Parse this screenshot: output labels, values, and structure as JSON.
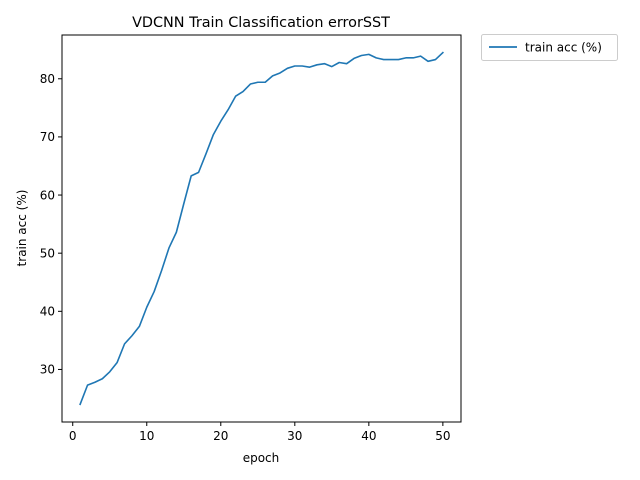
{
  "chart_data": {
    "type": "line",
    "title": "VDCNN Train Classification errorSST",
    "xlabel": "epoch",
    "ylabel": "train acc (%)",
    "xlim": [
      -1.45,
      52.45
    ],
    "ylim": [
      20.96,
      87.53
    ],
    "xticks": [
      0,
      10,
      20,
      30,
      40,
      50
    ],
    "yticks": [
      30,
      40,
      50,
      60,
      70,
      80
    ],
    "grid": false,
    "legend_location": "outside-top-right",
    "series": [
      {
        "name": "train acc (%)",
        "color": "#1f77b4",
        "x": [
          1,
          2,
          3,
          4,
          5,
          6,
          7,
          8,
          9,
          10,
          11,
          12,
          13,
          14,
          15,
          16,
          17,
          18,
          19,
          20,
          21,
          22,
          23,
          24,
          25,
          26,
          27,
          28,
          29,
          30,
          31,
          32,
          33,
          34,
          35,
          36,
          37,
          38,
          39,
          40,
          41,
          42,
          43,
          44,
          45,
          46,
          47,
          48,
          49,
          50
        ],
        "y": [
          24.0,
          27.3,
          27.8,
          28.4,
          29.6,
          31.2,
          34.4,
          35.8,
          37.4,
          40.7,
          43.4,
          47.0,
          50.9,
          53.6,
          58.5,
          63.3,
          63.9,
          67.1,
          70.4,
          72.7,
          74.7,
          77.0,
          77.8,
          79.1,
          79.4,
          79.4,
          80.5,
          81.0,
          81.8,
          82.2,
          82.2,
          82.0,
          82.4,
          82.6,
          82.1,
          82.8,
          82.6,
          83.5,
          84.0,
          84.2,
          83.6,
          83.3,
          83.3,
          83.3,
          83.6,
          83.6,
          83.9,
          83.0,
          83.3,
          84.5
        ]
      }
    ]
  }
}
